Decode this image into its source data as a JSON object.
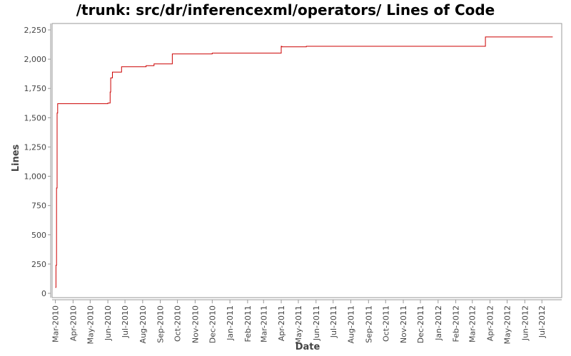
{
  "chart_data": {
    "type": "line",
    "title": "/trunk: src/dr/inferencexml/operators/ Lines of Code",
    "xlabel": "Date",
    "ylabel": "Lines",
    "ylim": [
      0,
      2300
    ],
    "xlim": [
      "2010-02-27",
      "2012-08-01"
    ],
    "y_ticks": [
      0,
      250,
      500,
      750,
      1000,
      1250,
      1500,
      1750,
      2000,
      2250
    ],
    "y_tick_labels": [
      "0",
      "250",
      "500",
      "750",
      "1,000",
      "1,250",
      "1,500",
      "1,750",
      "2,000",
      "2,250"
    ],
    "x_ticks": [
      "2010-03-01",
      "2010-04-01",
      "2010-05-01",
      "2010-06-01",
      "2010-07-01",
      "2010-08-01",
      "2010-09-01",
      "2010-10-01",
      "2010-11-01",
      "2010-12-01",
      "2011-01-01",
      "2011-02-01",
      "2011-03-01",
      "2011-04-01",
      "2011-05-01",
      "2011-06-01",
      "2011-07-01",
      "2011-08-01",
      "2011-09-01",
      "2011-10-01",
      "2011-11-01",
      "2011-12-01",
      "2012-01-01",
      "2012-02-01",
      "2012-03-01",
      "2012-04-01",
      "2012-05-01",
      "2012-06-01",
      "2012-07-01"
    ],
    "x_tick_labels": [
      "Mar-2010",
      "Apr-2010",
      "May-2010",
      "Jun-2010",
      "Jul-2010",
      "Aug-2010",
      "Sep-2010",
      "Oct-2010",
      "Nov-2010",
      "Dec-2010",
      "Jan-2011",
      "Feb-2011",
      "Mar-2011",
      "Apr-2011",
      "May-2011",
      "Jun-2011",
      "Jul-2011",
      "Aug-2011",
      "Sep-2011",
      "Oct-2011",
      "Nov-2011",
      "Dec-2011",
      "Jan-2012",
      "Feb-2012",
      "Mar-2012",
      "Apr-2012",
      "May-2012",
      "Jun-2012",
      "Jul-2012"
    ],
    "grid": false,
    "series": [
      {
        "color": "#cc0000",
        "points": [
          [
            "2010-03-01",
            50
          ],
          [
            "2010-03-02",
            240
          ],
          [
            "2010-03-03",
            900
          ],
          [
            "2010-03-04",
            1540
          ],
          [
            "2010-03-05",
            1620
          ],
          [
            "2010-06-01",
            1625
          ],
          [
            "2010-06-05",
            1720
          ],
          [
            "2010-06-06",
            1840
          ],
          [
            "2010-06-09",
            1890
          ],
          [
            "2010-06-25",
            1935
          ],
          [
            "2010-08-07",
            1945
          ],
          [
            "2010-08-21",
            1960
          ],
          [
            "2010-09-22",
            2045
          ],
          [
            "2010-12-01",
            2052
          ],
          [
            "2011-04-01",
            2110
          ],
          [
            "2011-04-02",
            2105
          ],
          [
            "2011-05-15",
            2110
          ],
          [
            "2012-03-24",
            2190
          ],
          [
            "2012-07-20",
            2190
          ]
        ]
      }
    ]
  }
}
